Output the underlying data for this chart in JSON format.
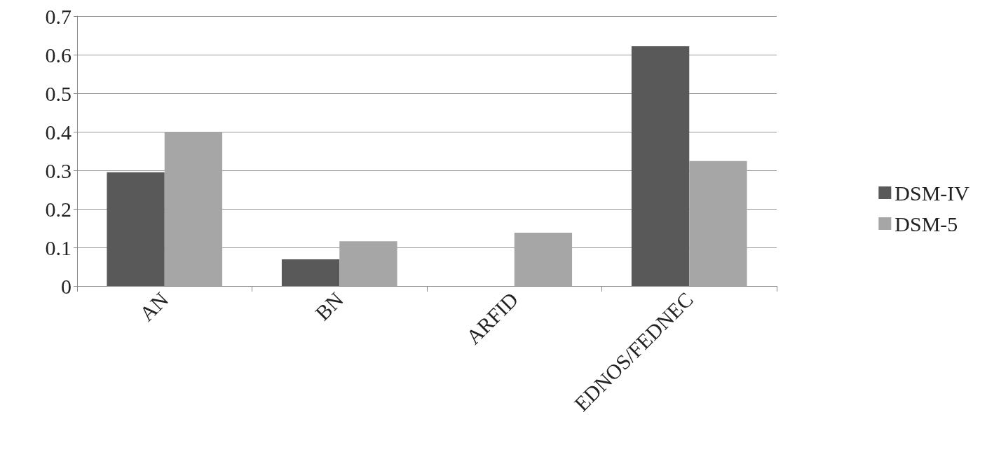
{
  "chart_data": {
    "type": "bar",
    "categories": [
      "AN",
      "BN",
      "ARFID",
      "EDNOS/FEDNEC"
    ],
    "series": [
      {
        "name": "DSM-IV",
        "color": "#595959",
        "values": [
          0.295,
          0.069,
          0,
          0.622
        ]
      },
      {
        "name": "DSM-5",
        "color": "#a6a6a6",
        "values": [
          0.4,
          0.116,
          0.138,
          0.324
        ]
      }
    ],
    "ylim": [
      0,
      0.7
    ],
    "yticks": [
      0,
      0.1,
      0.2,
      0.3,
      0.4,
      0.5,
      0.6,
      0.7
    ],
    "grid": "y",
    "legend": "right"
  }
}
